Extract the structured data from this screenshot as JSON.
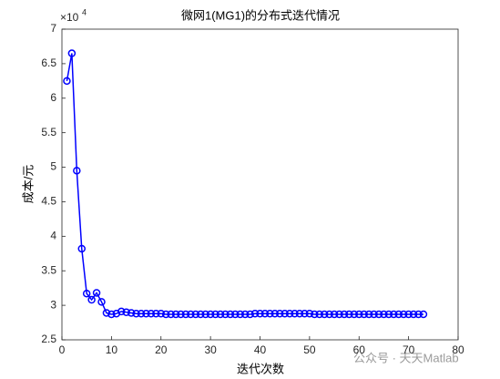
{
  "chart_data": {
    "type": "line",
    "title": "微网1(MG1)的分布式迭代情况",
    "xlabel": "迭代次数",
    "ylabel": "成本/元",
    "y_multiplier": {
      "base": "×10",
      "exponent": "4"
    },
    "watermark": "公众号 · 天天Matlab",
    "xlim": [
      0,
      80
    ],
    "xticks": [
      0,
      10,
      20,
      30,
      40,
      50,
      60,
      70,
      80
    ],
    "ylim": [
      2.5,
      7
    ],
    "yticks": [
      2.5,
      3,
      3.5,
      4,
      4.5,
      5,
      5.5,
      6,
      6.5,
      7
    ],
    "grid": false,
    "marker": "circle",
    "series": [
      {
        "color": "#0000ff",
        "x": [
          1,
          2,
          3,
          4,
          5,
          6,
          7,
          8,
          9,
          10,
          11,
          12,
          13,
          14,
          15,
          16,
          17,
          18,
          19,
          20,
          21,
          22,
          23,
          24,
          25,
          26,
          27,
          28,
          29,
          30,
          31,
          32,
          33,
          34,
          35,
          36,
          37,
          38,
          39,
          40,
          41,
          42,
          43,
          44,
          45,
          46,
          47,
          48,
          49,
          50,
          51,
          52,
          53,
          54,
          55,
          56,
          57,
          58,
          59,
          60,
          61,
          62,
          63,
          64,
          65,
          66,
          67,
          68,
          69,
          70,
          71,
          72,
          73
        ],
        "values": [
          6.25,
          6.65,
          4.95,
          3.82,
          3.17,
          3.08,
          3.18,
          3.05,
          2.89,
          2.87,
          2.88,
          2.91,
          2.9,
          2.89,
          2.88,
          2.88,
          2.88,
          2.88,
          2.88,
          2.88,
          2.87,
          2.87,
          2.87,
          2.87,
          2.87,
          2.87,
          2.87,
          2.87,
          2.87,
          2.87,
          2.87,
          2.87,
          2.87,
          2.87,
          2.87,
          2.87,
          2.87,
          2.87,
          2.88,
          2.88,
          2.88,
          2.88,
          2.88,
          2.88,
          2.88,
          2.88,
          2.88,
          2.88,
          2.88,
          2.88,
          2.87,
          2.87,
          2.87,
          2.87,
          2.87,
          2.87,
          2.87,
          2.87,
          2.87,
          2.87,
          2.87,
          2.87,
          2.87,
          2.87,
          2.87,
          2.87,
          2.87,
          2.87,
          2.87,
          2.87,
          2.87,
          2.87,
          2.87
        ]
      }
    ]
  }
}
